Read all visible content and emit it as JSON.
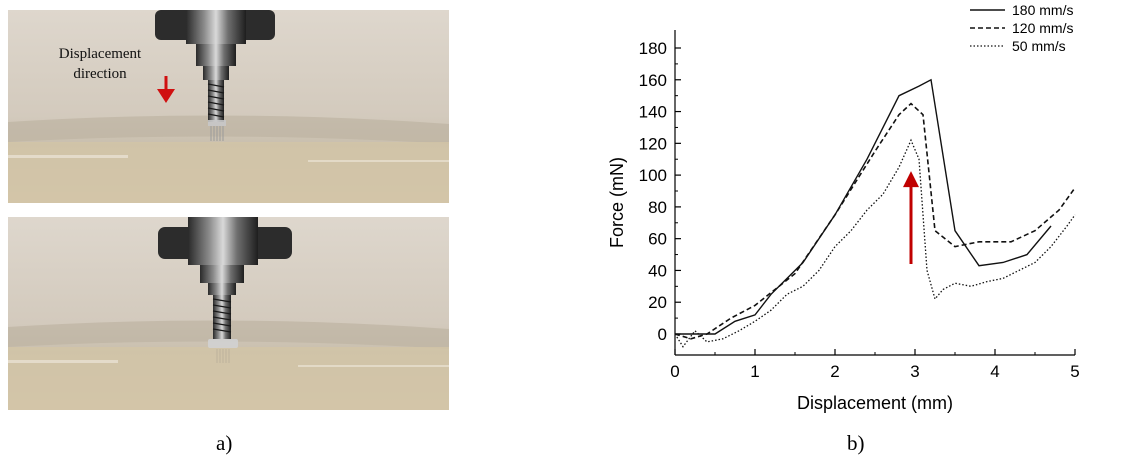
{
  "panel_a": {
    "label": "a)",
    "annotation_line1": "Displacement",
    "annotation_line2": "direction",
    "arrow_color": "#d01010"
  },
  "panel_b": {
    "label": "b)"
  },
  "chart_data": {
    "type": "line",
    "xlabel": "Displacement (mm)",
    "ylabel": "Force (mN)",
    "xlim": [
      0,
      5
    ],
    "ylim": [
      -10,
      180
    ],
    "xticks": [
      0,
      1,
      2,
      3,
      4,
      5
    ],
    "yticks": [
      0,
      20,
      40,
      60,
      80,
      100,
      120,
      140,
      160,
      180
    ],
    "grid": false,
    "legend_position": "top-right",
    "series": [
      {
        "name": "180 mm/s",
        "style": "solid",
        "x": [
          0,
          0.2,
          0.5,
          0.75,
          1.0,
          1.2,
          1.6,
          2.0,
          2.4,
          2.8,
          3.05,
          3.2,
          3.5,
          3.8,
          4.1,
          4.4,
          4.7
        ],
        "y": [
          0,
          0,
          0,
          8,
          12,
          25,
          45,
          75,
          110,
          150,
          156,
          160,
          65,
          43,
          45,
          50,
          68
        ]
      },
      {
        "name": "120 mm/s",
        "style": "dashed",
        "x": [
          0,
          0.2,
          0.4,
          0.7,
          1.0,
          1.5,
          2.0,
          2.5,
          2.8,
          2.95,
          3.1,
          3.25,
          3.5,
          3.8,
          4.0,
          4.2,
          4.5,
          4.8,
          5.0
        ],
        "y": [
          0,
          -3,
          0,
          10,
          18,
          38,
          75,
          115,
          138,
          145,
          138,
          65,
          55,
          58,
          58,
          58,
          65,
          78,
          92
        ]
      },
      {
        "name": "50 mm/s",
        "style": "dotted",
        "x": [
          0,
          0.1,
          0.25,
          0.4,
          0.6,
          0.8,
          1.0,
          1.2,
          1.4,
          1.6,
          1.8,
          2.0,
          2.2,
          2.4,
          2.6,
          2.8,
          2.95,
          3.05,
          3.15,
          3.25,
          3.35,
          3.5,
          3.7,
          3.9,
          4.1,
          4.3,
          4.5,
          4.7,
          4.9,
          5.0
        ],
        "y": [
          0,
          -8,
          2,
          -5,
          -3,
          2,
          8,
          15,
          25,
          30,
          40,
          55,
          65,
          78,
          88,
          105,
          122,
          110,
          40,
          22,
          28,
          32,
          30,
          33,
          35,
          40,
          45,
          55,
          68,
          75
        ]
      }
    ],
    "annotation_arrow_color": "#c00000"
  }
}
